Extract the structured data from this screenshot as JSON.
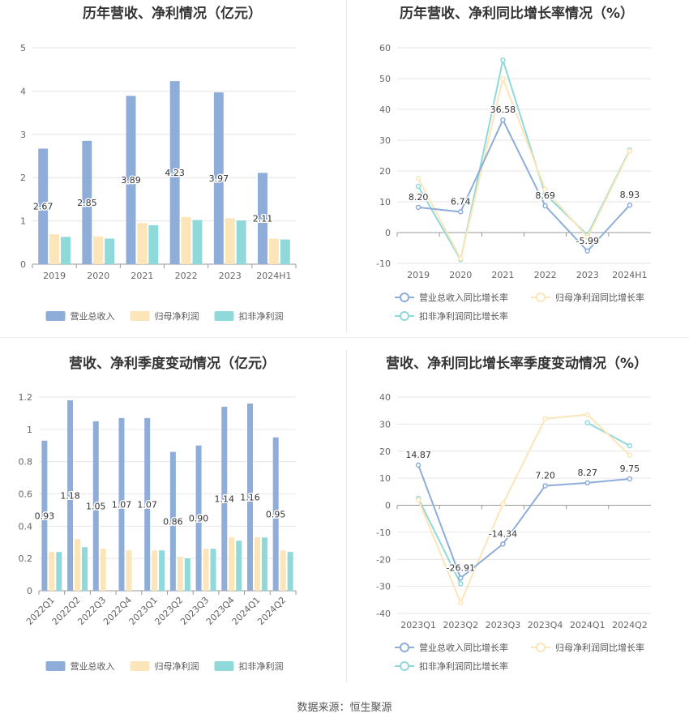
{
  "source": "数据来源：恒生聚源",
  "chart_data": [
    {
      "type": "bar",
      "title": "历年营收、净利情况（亿元）",
      "categories": [
        "2019",
        "2020",
        "2021",
        "2022",
        "2023",
        "2024H1"
      ],
      "ylim": [
        0,
        5
      ],
      "yticks": [
        0,
        1,
        2,
        3,
        4,
        5
      ],
      "series": [
        {
          "name": "营业总收入",
          "values": [
            2.67,
            2.85,
            3.89,
            4.23,
            3.97,
            2.11
          ],
          "color": "#8eadd9",
          "labels": [
            "2.67",
            "2.85",
            "3.89",
            "4.23",
            "3.97",
            "2.11"
          ]
        },
        {
          "name": "归母净利润",
          "values": [
            0.69,
            0.64,
            0.95,
            1.09,
            1.06,
            0.59
          ],
          "color": "#fce5b8"
        },
        {
          "name": "扣非净利润",
          "values": [
            0.63,
            0.59,
            0.9,
            1.02,
            1.01,
            0.57
          ],
          "color": "#8fd9da"
        }
      ],
      "grid": true,
      "legend": "bottom"
    },
    {
      "type": "line",
      "title": "历年营收、净利同比增长率情况（%）",
      "categories": [
        "2019",
        "2020",
        "2021",
        "2022",
        "2023",
        "2024H1"
      ],
      "ylim": [
        -10,
        60
      ],
      "yticks": [
        -10,
        0,
        10,
        20,
        30,
        40,
        50,
        60
      ],
      "series": [
        {
          "name": "营业总收入同比增长率",
          "values": [
            8.2,
            6.74,
            36.58,
            8.69,
            -5.99,
            8.93
          ],
          "color": "#8eadd9",
          "labels": [
            "8.20",
            "6.74",
            "36.58",
            "8.69",
            "-5.99",
            "8.93"
          ]
        },
        {
          "name": "归母净利润同比增长率",
          "values": [
            17.6,
            -8.5,
            50.0,
            14.0,
            -1.5,
            26.5
          ],
          "color": "#fce5b8"
        },
        {
          "name": "扣非净利润同比增长率",
          "values": [
            15.0,
            -8.8,
            56.0,
            12.5,
            -0.8,
            26.8
          ],
          "color": "#8fd9da"
        }
      ],
      "grid": true,
      "legend": "bottom"
    },
    {
      "type": "bar",
      "title": "营收、净利季度变动情况（亿元）",
      "categories": [
        "2022Q1",
        "2022Q2",
        "2022Q3",
        "2022Q4",
        "2023Q1",
        "2023Q2",
        "2023Q3",
        "2023Q4",
        "2024Q1",
        "2024Q2"
      ],
      "ylim": [
        0,
        1.2
      ],
      "yticks": [
        0,
        0.2,
        0.4,
        0.6,
        0.8,
        1,
        1.2
      ],
      "series": [
        {
          "name": "营业总收入",
          "values": [
            0.93,
            1.18,
            1.05,
            1.07,
            1.07,
            0.86,
            0.9,
            1.14,
            1.16,
            0.95
          ],
          "color": "#8eadd9",
          "labels": [
            "0.93",
            "1.18",
            "1.05",
            "1.07",
            "1.07",
            "0.86",
            "0.90",
            "1.14",
            "1.16",
            "0.95"
          ]
        },
        {
          "name": "归母净利润",
          "values": [
            0.24,
            0.32,
            0.26,
            0.25,
            0.25,
            0.21,
            0.26,
            0.33,
            0.33,
            0.25
          ],
          "color": "#fce5b8"
        },
        {
          "name": "扣非净利润",
          "values": [
            0.24,
            0.27,
            null,
            null,
            0.25,
            0.2,
            0.26,
            0.31,
            0.33,
            0.24
          ],
          "color": "#8fd9da"
        }
      ],
      "grid": true,
      "legend": "bottom"
    },
    {
      "type": "line",
      "title": "营收、净利同比增长率季度变动情况（%）",
      "categories": [
        "2023Q1",
        "2023Q2",
        "2023Q3",
        "2023Q4",
        "2024Q1",
        "2024Q2"
      ],
      "ylim": [
        -40,
        40
      ],
      "yticks": [
        -40,
        -30,
        -20,
        -10,
        0,
        10,
        20,
        30,
        40
      ],
      "series": [
        {
          "name": "营业总收入同比增长率",
          "values": [
            14.87,
            -26.91,
            -14.34,
            7.2,
            8.27,
            9.75
          ],
          "color": "#8eadd9",
          "labels": [
            "14.87",
            "-26.91",
            "-14.34",
            "7.20",
            "8.27",
            "9.75"
          ]
        },
        {
          "name": "归母净利润同比增长率",
          "values": [
            2.0,
            -36.0,
            0.5,
            32.0,
            33.5,
            18.5
          ],
          "color": "#fce5b8"
        },
        {
          "name": "扣非净利润同比增长率",
          "values": [
            2.5,
            -29.0,
            null,
            null,
            30.5,
            22.0
          ],
          "color": "#8fd9da"
        }
      ],
      "grid": true,
      "legend": "bottom"
    }
  ]
}
